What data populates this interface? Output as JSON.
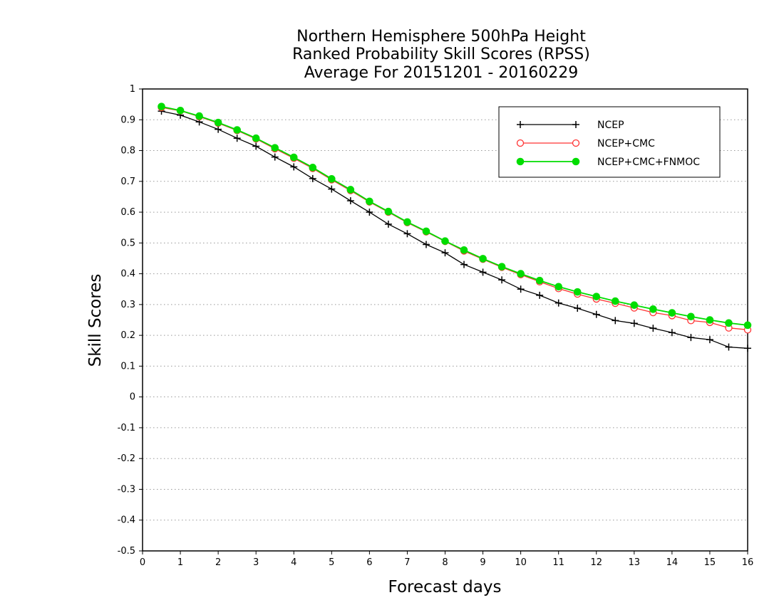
{
  "chart_data": {
    "type": "line",
    "title": [
      "Northern Hemisphere 500hPa Height",
      "Ranked Probability Skill Scores (RPSS)",
      "Average For 20151201 - 20160229"
    ],
    "xlabel": "Forecast days",
    "ylabel": "Skill Scores",
    "xlim": [
      0,
      16
    ],
    "ylim": [
      -0.5,
      1
    ],
    "x_ticks": [
      "0",
      "1",
      "2",
      "3",
      "4",
      "5",
      "6",
      "7",
      "8",
      "9",
      "10",
      "11",
      "12",
      "13",
      "14",
      "15",
      "16"
    ],
    "y_ticks": [
      "-0.5",
      "-0.4",
      "-0.3",
      "-0.2",
      "-0.1",
      "0",
      "0.1",
      "0.2",
      "0.3",
      "0.4",
      "0.5",
      "0.6",
      "0.7",
      "0.8",
      "0.9",
      "1"
    ],
    "grid": "horizontal dotted",
    "legend_position": "top-right",
    "x": [
      0.5,
      1,
      1.5,
      2,
      2.5,
      3,
      3.5,
      4,
      4.5,
      5,
      5.5,
      6,
      6.5,
      7,
      7.5,
      8,
      8.5,
      9,
      9.5,
      10,
      10.5,
      11,
      11.5,
      12,
      12.5,
      13,
      13.5,
      14,
      14.5,
      15,
      15.5,
      16
    ],
    "series": [
      {
        "name": "NCEP",
        "color": "#000000",
        "marker": "plus",
        "values": [
          0.928,
          0.915,
          0.893,
          0.869,
          0.84,
          0.814,
          0.779,
          0.747,
          0.709,
          0.675,
          0.637,
          0.6,
          0.561,
          0.53,
          0.495,
          0.468,
          0.43,
          0.405,
          0.38,
          0.35,
          0.33,
          0.305,
          0.288,
          0.268,
          0.248,
          0.239,
          0.223,
          0.209,
          0.193,
          0.186,
          0.162,
          0.158
        ]
      },
      {
        "name": "NCEP+CMC",
        "color": "#ff3333",
        "marker": "open-circle",
        "values": [
          0.94,
          0.929,
          0.91,
          0.889,
          0.865,
          0.838,
          0.806,
          0.775,
          0.742,
          0.705,
          0.67,
          0.633,
          0.6,
          0.566,
          0.536,
          0.505,
          0.474,
          0.447,
          0.421,
          0.397,
          0.374,
          0.352,
          0.334,
          0.318,
          0.304,
          0.289,
          0.274,
          0.264,
          0.248,
          0.242,
          0.224,
          0.218
        ]
      },
      {
        "name": "NCEP+CMC+FNMOC",
        "color": "#00dd00",
        "marker": "filled-circle",
        "values": [
          0.943,
          0.93,
          0.912,
          0.891,
          0.867,
          0.84,
          0.809,
          0.778,
          0.745,
          0.708,
          0.673,
          0.635,
          0.602,
          0.568,
          0.538,
          0.506,
          0.477,
          0.449,
          0.423,
          0.4,
          0.378,
          0.358,
          0.341,
          0.326,
          0.311,
          0.298,
          0.285,
          0.273,
          0.261,
          0.25,
          0.24,
          0.233
        ]
      }
    ]
  }
}
